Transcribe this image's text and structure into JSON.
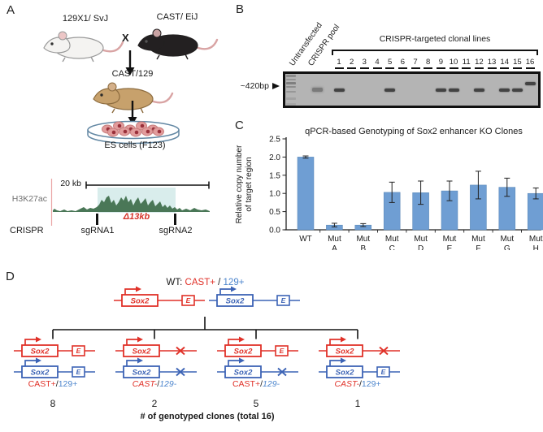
{
  "panel_a": {
    "label": "A",
    "parent1": "129X1/ SvJ",
    "cross": "X",
    "parent2": "CAST/ EiJ",
    "offspring": "CAST/129",
    "dish": "ES cells (F123)",
    "scale_bar": "20 kb",
    "track": "H3K27ac",
    "deletion": "Δ13kb",
    "crispr": "CRISPR",
    "sgrna1": "sgRNA1",
    "sgrna2": "sgRNA2"
  },
  "panel_b": {
    "label": "B",
    "rotated_labels": [
      "Untransfected",
      "CRISPR pool"
    ],
    "bracket_label": "CRISPR-targeted clonal lines",
    "size_marker": "~420bp",
    "untransfected_band": false,
    "pool_band": true,
    "lanes": [
      {
        "number": "1",
        "band": true
      },
      {
        "number": "2",
        "band": false
      },
      {
        "number": "3",
        "band": false
      },
      {
        "number": "4",
        "band": false
      },
      {
        "number": "5",
        "band": true
      },
      {
        "number": "6",
        "band": false
      },
      {
        "number": "7",
        "band": false
      },
      {
        "number": "8",
        "band": false
      },
      {
        "number": "9",
        "band": true
      },
      {
        "number": "10",
        "band": true
      },
      {
        "number": "11",
        "band": false
      },
      {
        "number": "12",
        "band": true
      },
      {
        "number": "13",
        "band": false
      },
      {
        "number": "14",
        "band": true
      },
      {
        "number": "15",
        "band": true
      },
      {
        "number": "16",
        "band": true,
        "band_shift": "high"
      }
    ]
  },
  "panel_c": {
    "label": "C"
  },
  "chart_data": {
    "type": "bar",
    "title": "qPCR-based Genotyping of Sox2 enhancer KO Clones",
    "ylabel_lines": [
      "Relative copy number",
      "of target region"
    ],
    "xlabel": "",
    "categories": [
      "WT",
      "Mut A",
      "Mut B",
      "Mut C",
      "Mut D",
      "Mut E",
      "Mut F",
      "Mut G",
      "Mut H"
    ],
    "values": [
      2.0,
      0.13,
      0.13,
      1.03,
      1.02,
      1.07,
      1.23,
      1.17,
      1.0
    ],
    "errors": [
      0.03,
      0.05,
      0.04,
      0.28,
      0.32,
      0.27,
      0.38,
      0.25,
      0.15
    ],
    "yticks": [
      "0.0",
      "0.5",
      "1.0",
      "1.5",
      "2.0",
      "2.5"
    ],
    "ylim": [
      0,
      2.5
    ],
    "grid": false,
    "legend": null,
    "bar_color": "#6f9ed3"
  },
  "panel_d": {
    "label": "D",
    "gene_label": "Sox2",
    "enhancer_label": "E",
    "wt_title_parts": [
      {
        "text": "WT: ",
        "color": "#1a1a1a",
        "italic": false
      },
      {
        "text": "CAST+",
        "color": "#e03128",
        "italic": false
      },
      {
        "text": " / ",
        "color": "#1a1a1a",
        "italic": false
      },
      {
        "text": "129+",
        "color": "#4d86cd",
        "italic": false
      }
    ],
    "wt_alleles": [
      {
        "strain": "CAST",
        "color": "#e03128",
        "enhancer": true
      },
      {
        "strain": "129",
        "color": "#3c63b5",
        "enhancer": true
      }
    ],
    "groups": [
      {
        "count": "8",
        "alleles": [
          {
            "color": "#e03128",
            "enhancer": true
          },
          {
            "color": "#3c63b5",
            "enhancer": true
          }
        ],
        "genotype_parts": [
          {
            "text": "CAST+",
            "color": "#e03128",
            "italic": false
          },
          {
            "text": "/",
            "color": "#1a1a1a",
            "italic": false
          },
          {
            "text": "129+",
            "color": "#4d86cd",
            "italic": false
          }
        ]
      },
      {
        "count": "2",
        "alleles": [
          {
            "color": "#e03128",
            "enhancer": false
          },
          {
            "color": "#3c63b5",
            "enhancer": false
          }
        ],
        "genotype_parts": [
          {
            "text": "CAST-",
            "color": "#e03128",
            "italic": true
          },
          {
            "text": "/",
            "color": "#1a1a1a",
            "italic": false
          },
          {
            "text": "129-",
            "color": "#4d86cd",
            "italic": true
          }
        ]
      },
      {
        "count": "5",
        "alleles": [
          {
            "color": "#e03128",
            "enhancer": true
          },
          {
            "color": "#3c63b5",
            "enhancer": false
          }
        ],
        "genotype_parts": [
          {
            "text": "CAST+",
            "color": "#e03128",
            "italic": false
          },
          {
            "text": "/",
            "color": "#1a1a1a",
            "italic": false
          },
          {
            "text": "129-",
            "color": "#4d86cd",
            "italic": true
          }
        ]
      },
      {
        "count": "1",
        "alleles": [
          {
            "color": "#e03128",
            "enhancer": false
          },
          {
            "color": "#3c63b5",
            "enhancer": true
          }
        ],
        "genotype_parts": [
          {
            "text": "CAST-",
            "color": "#e03128",
            "italic": true
          },
          {
            "text": "/",
            "color": "#1a1a1a",
            "italic": false
          },
          {
            "text": "129+",
            "color": "#4d86cd",
            "italic": false
          }
        ]
      }
    ],
    "caption": "# of genotyped clones (total 16)"
  },
  "colors": {
    "cast_red": "#e03128",
    "s129_blue": "#3c63b5",
    "s129_text_blue": "#4d86cd",
    "track_green": "#4a7757",
    "highlight_teal": "#d9edec",
    "bar_blue": "#6f9ed3",
    "gel_gray": "#b4b4b4",
    "deletion_red": "#d5352b"
  }
}
